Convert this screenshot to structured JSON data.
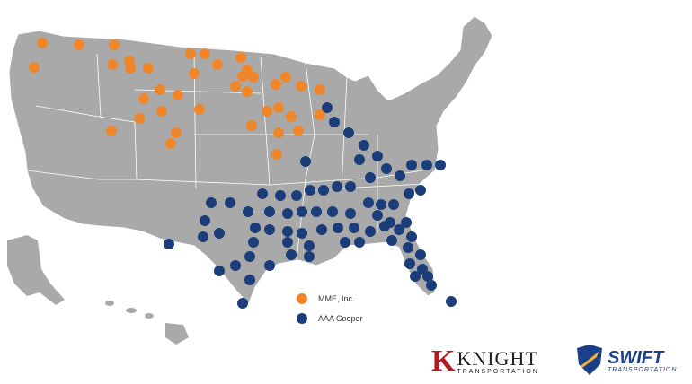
{
  "legend": {
    "mme": {
      "label": "MME, Inc.",
      "color": "#f0862a"
    },
    "aaa": {
      "label": "AAA Cooper",
      "color": "#1b3d7a"
    }
  },
  "logos": {
    "knight": {
      "mark": "K",
      "name": "KNIGHT",
      "subtitle": "TRANSPORTATION"
    },
    "swift": {
      "name": "SWIFT",
      "subtitle": "TRANSPORTATION"
    }
  }
}
